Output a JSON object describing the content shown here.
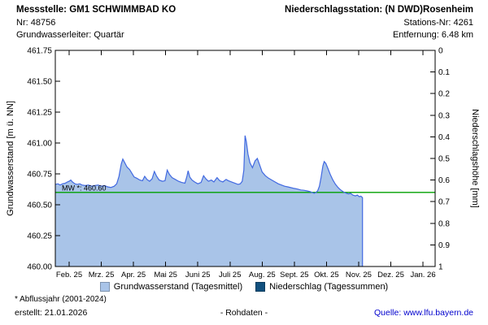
{
  "header": {
    "station_title": "Messstelle: GM1 SCHWIMMBAD KO",
    "station_nr": "Nr: 48756",
    "aquifer": "Grundwasserleiter: Quartär",
    "precip_station": "Niederschlagsstation: (N DWD)Rosenheim",
    "precip_nr": "Stations-Nr: 4261",
    "distance": "Entfernung: 6.48 km"
  },
  "legend": {
    "items": [
      {
        "name": "groundwater",
        "label": "Grundwasserstand (Tagesmittel)",
        "color": "#a9c4e8"
      },
      {
        "name": "precipitation",
        "label": "Niederschlag (Tagessummen)",
        "color": "#11507e"
      }
    ]
  },
  "footer": {
    "note": "* Abflussjahr (2001-2024)",
    "created": "erstellt: 21.01.2026",
    "center": "- Rohdaten -",
    "source_label": "Quelle:",
    "source_link": "www.lfu.bayern.de"
  },
  "chart_data": {
    "type": "area",
    "x_axis": {
      "unit": "month_index (0 = Feb. 25 tick, 11 = Jan. 26 tick)",
      "tick_labels": [
        "Feb. 25",
        "Mrz. 25",
        "Apr. 25",
        "Mai 25",
        "Juni 25",
        "Juli 25",
        "Aug. 25",
        "Sept. 25",
        "Okt. 25",
        "Nov. 25",
        "Dez. 25",
        "Jan. 26"
      ],
      "domain": [
        -0.43,
        11.38
      ]
    },
    "left_axis": {
      "label": "Grundwasserstand [m ü. NN]",
      "min": 460.0,
      "max": 461.75,
      "tick_step": 0.25,
      "tick_labels": [
        "460.00",
        "460.25",
        "460.50",
        "460.75",
        "461.00",
        "461.25",
        "461.50",
        "461.75"
      ]
    },
    "right_axis": {
      "label": "Niederschlagshöhe [mm]",
      "min": 0,
      "max": 1,
      "tick_step": 0.1,
      "inverted": true,
      "tick_labels": [
        "0",
        "0.1",
        "0.2",
        "0.3",
        "0.4",
        "0.5",
        "0.6",
        "0.7",
        "0.8",
        "0.9",
        "1"
      ]
    },
    "reference_line": {
      "label": "MW *: 460.60",
      "value": 460.6,
      "color": "#00a000"
    },
    "grid": false,
    "series": [
      {
        "name": "Grundwasserstand (Tagesmittel)",
        "type": "area",
        "fill": "#a9c4e8",
        "stroke": "#4169e1",
        "points": [
          [
            -0.43,
            460.665
          ],
          [
            -0.35,
            460.67
          ],
          [
            -0.28,
            460.66
          ],
          [
            -0.2,
            460.67
          ],
          [
            -0.12,
            460.675
          ],
          [
            -0.05,
            460.685
          ],
          [
            0.0,
            460.69
          ],
          [
            0.05,
            460.7
          ],
          [
            0.1,
            460.685
          ],
          [
            0.18,
            460.67
          ],
          [
            0.25,
            460.665
          ],
          [
            0.33,
            460.67
          ],
          [
            0.4,
            460.66
          ],
          [
            0.5,
            460.655
          ],
          [
            0.6,
            460.66
          ],
          [
            0.7,
            460.65
          ],
          [
            0.8,
            460.655
          ],
          [
            0.9,
            460.66
          ],
          [
            1.0,
            460.65
          ],
          [
            1.1,
            460.655
          ],
          [
            1.2,
            460.645
          ],
          [
            1.3,
            460.64
          ],
          [
            1.4,
            460.65
          ],
          [
            1.48,
            460.67
          ],
          [
            1.55,
            460.73
          ],
          [
            1.62,
            460.83
          ],
          [
            1.67,
            460.87
          ],
          [
            1.73,
            460.84
          ],
          [
            1.8,
            460.805
          ],
          [
            1.88,
            460.785
          ],
          [
            1.95,
            460.755
          ],
          [
            2.02,
            460.725
          ],
          [
            2.1,
            460.715
          ],
          [
            2.2,
            460.7
          ],
          [
            2.28,
            460.695
          ],
          [
            2.35,
            460.73
          ],
          [
            2.42,
            460.705
          ],
          [
            2.5,
            460.69
          ],
          [
            2.58,
            460.71
          ],
          [
            2.65,
            460.77
          ],
          [
            2.72,
            460.73
          ],
          [
            2.8,
            460.7
          ],
          [
            2.9,
            460.69
          ],
          [
            2.98,
            460.695
          ],
          [
            3.05,
            460.78
          ],
          [
            3.12,
            460.745
          ],
          [
            3.2,
            460.72
          ],
          [
            3.3,
            460.705
          ],
          [
            3.4,
            460.69
          ],
          [
            3.5,
            460.68
          ],
          [
            3.6,
            460.675
          ],
          [
            3.66,
            460.73
          ],
          [
            3.7,
            460.775
          ],
          [
            3.75,
            460.725
          ],
          [
            3.82,
            460.7
          ],
          [
            3.9,
            460.685
          ],
          [
            4.0,
            460.67
          ],
          [
            4.1,
            460.68
          ],
          [
            4.18,
            460.735
          ],
          [
            4.25,
            460.71
          ],
          [
            4.33,
            460.69
          ],
          [
            4.42,
            460.7
          ],
          [
            4.5,
            460.685
          ],
          [
            4.6,
            460.72
          ],
          [
            4.68,
            460.695
          ],
          [
            4.78,
            460.685
          ],
          [
            4.88,
            460.705
          ],
          [
            4.95,
            460.695
          ],
          [
            5.05,
            460.685
          ],
          [
            5.15,
            460.675
          ],
          [
            5.25,
            460.665
          ],
          [
            5.32,
            460.67
          ],
          [
            5.38,
            460.69
          ],
          [
            5.43,
            460.78
          ],
          [
            5.47,
            461.06
          ],
          [
            5.51,
            461.01
          ],
          [
            5.56,
            460.91
          ],
          [
            5.62,
            460.84
          ],
          [
            5.7,
            460.8
          ],
          [
            5.78,
            460.855
          ],
          [
            5.85,
            460.875
          ],
          [
            5.92,
            460.825
          ],
          [
            6.0,
            460.765
          ],
          [
            6.1,
            460.735
          ],
          [
            6.2,
            460.715
          ],
          [
            6.3,
            460.7
          ],
          [
            6.4,
            460.685
          ],
          [
            6.5,
            460.67
          ],
          [
            6.6,
            460.66
          ],
          [
            6.7,
            460.65
          ],
          [
            6.8,
            460.645
          ],
          [
            6.9,
            460.638
          ],
          [
            7.0,
            460.632
          ],
          [
            7.1,
            460.627
          ],
          [
            7.2,
            460.62
          ],
          [
            7.3,
            460.617
          ],
          [
            7.4,
            460.612
          ],
          [
            7.5,
            460.605
          ],
          [
            7.56,
            460.598
          ],
          [
            7.62,
            460.593
          ],
          [
            7.68,
            460.6
          ],
          [
            7.73,
            460.615
          ],
          [
            7.78,
            460.65
          ],
          [
            7.83,
            460.72
          ],
          [
            7.89,
            460.815
          ],
          [
            7.93,
            460.85
          ],
          [
            7.98,
            460.835
          ],
          [
            8.05,
            460.79
          ],
          [
            8.12,
            460.745
          ],
          [
            8.2,
            460.7
          ],
          [
            8.28,
            460.665
          ],
          [
            8.36,
            460.64
          ],
          [
            8.44,
            460.62
          ],
          [
            8.52,
            460.605
          ],
          [
            8.6,
            460.595
          ],
          [
            8.68,
            460.588
          ],
          [
            8.75,
            460.592
          ],
          [
            8.82,
            460.578
          ],
          [
            8.9,
            460.572
          ],
          [
            8.96,
            460.578
          ],
          [
            9.02,
            460.565
          ],
          [
            9.07,
            460.57
          ],
          [
            9.12,
            460.557
          ]
        ]
      },
      {
        "name": "Niederschlag (Tagessummen)",
        "type": "bar",
        "color": "#11507e",
        "points": []
      }
    ]
  }
}
